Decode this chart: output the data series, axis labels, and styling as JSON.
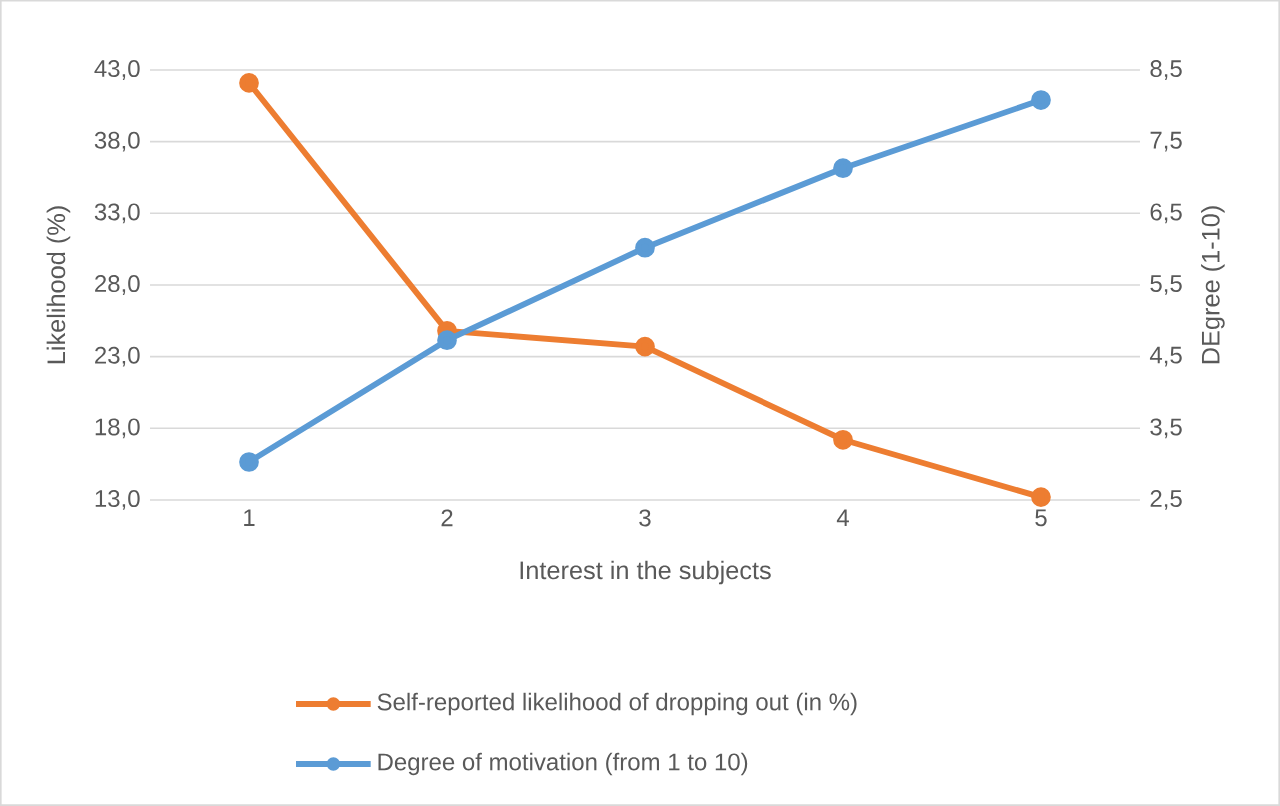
{
  "chart_data": {
    "type": "line",
    "xlabel": "Interest in the subjects",
    "ylabel": "Likelihood (%)",
    "y2label": "DEgree  (1-10)",
    "categories": [
      "1",
      "2",
      "3",
      "4",
      "5"
    ],
    "series": [
      {
        "name": "Self-reported likelihood of dropping out (in %)",
        "color": "#ed7d31",
        "values": [
          42.1,
          24.8,
          23.7,
          17.2,
          13.2
        ]
      },
      {
        "name": "Degree of motivation (from 1 to 10)",
        "color": "#5b9bd5",
        "values": [
          3.03,
          4.73,
          6.02,
          7.13,
          8.08
        ],
        "axis": "y2"
      }
    ],
    "ylim": [
      13,
      43
    ],
    "yticks": [
      {
        "value": 13,
        "label": "13,0"
      },
      {
        "value": 18,
        "label": "18,0"
      },
      {
        "value": 23,
        "label": "23,0"
      },
      {
        "value": 28,
        "label": "28,0"
      },
      {
        "value": 33,
        "label": "33,0"
      },
      {
        "value": 38,
        "label": "38,0"
      },
      {
        "value": 43,
        "label": "43,0"
      }
    ],
    "y2lim": [
      2.5,
      8.5
    ],
    "y2ticks": [
      {
        "value": 2.5,
        "label": "2,5"
      },
      {
        "value": 3.5,
        "label": "3,5"
      },
      {
        "value": 4.5,
        "label": "4,5"
      },
      {
        "value": 5.5,
        "label": "5,5"
      },
      {
        "value": 6.5,
        "label": "6,5"
      },
      {
        "value": 7.5,
        "label": "7,5"
      },
      {
        "value": 8.5,
        "label": "8,5"
      }
    ],
    "grid": "y",
    "legend": "bottom",
    "marker": "circle",
    "line_style": "solid"
  }
}
